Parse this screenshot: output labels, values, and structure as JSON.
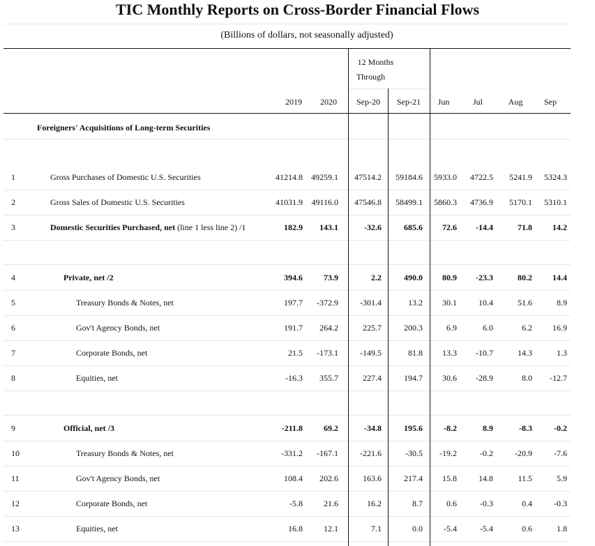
{
  "title": "TIC Monthly Reports on Cross-Border Financial Flows",
  "subtitle": "(Billions of dollars, not seasonally adjusted)",
  "group_header": {
    "line1": "12 Months",
    "line2": "Through"
  },
  "columns": [
    "2019",
    "2020",
    "Sep-20",
    "Sep-21",
    "Jun",
    "Jul",
    "Aug",
    "Sep"
  ],
  "section_title": "Foreigners' Acquisitions of Long-term Securities",
  "rows": [
    {
      "num": "1",
      "label": "Gross Purchases of Domestic U.S. Securities",
      "note": "",
      "indent": 1,
      "bold": false,
      "values": [
        "41214.8",
        "49259.1",
        "47514.2",
        "59184.6",
        "5933.0",
        "4722.5",
        "5241.9",
        "5324.3"
      ]
    },
    {
      "num": "2",
      "label": "Gross Sales of Domestic U.S. Securities",
      "note": "",
      "indent": 1,
      "bold": false,
      "values": [
        "41031.9",
        "49116.0",
        "47546.8",
        "58499.1",
        "5860.3",
        "4736.9",
        "5170.1",
        "5310.1"
      ]
    },
    {
      "num": "3",
      "label": "Domestic Securities Purchased, net",
      "note": "(line 1 less line 2) /1",
      "indent": 1,
      "bold": true,
      "values": [
        "182.9",
        "143.1",
        "-32.6",
        "685.6",
        "72.6",
        "-14.4",
        "71.8",
        "14.2"
      ]
    },
    {
      "num": "4",
      "label": "Private, net /2",
      "note": "",
      "indent": 2,
      "bold": true,
      "values": [
        "394.6",
        "73.9",
        "2.2",
        "490.0",
        "80.9",
        "-23.3",
        "80.2",
        "14.4"
      ]
    },
    {
      "num": "5",
      "label": "Treasury Bonds & Notes, net",
      "note": "",
      "indent": 3,
      "bold": false,
      "values": [
        "197.7",
        "-372.9",
        "-301.4",
        "13.2",
        "30.1",
        "10.4",
        "51.6",
        "8.9"
      ]
    },
    {
      "num": "6",
      "label": "Gov't Agency Bonds, net",
      "note": "",
      "indent": 3,
      "bold": false,
      "values": [
        "191.7",
        "264.2",
        "225.7",
        "200.3",
        "6.9",
        "6.0",
        "6.2",
        "16.9"
      ]
    },
    {
      "num": "7",
      "label": "Corporate Bonds, net",
      "note": "",
      "indent": 3,
      "bold": false,
      "values": [
        "21.5",
        "-173.1",
        "-149.5",
        "81.8",
        "13.3",
        "-10.7",
        "14.3",
        "1.3"
      ]
    },
    {
      "num": "8",
      "label": "Equities, net",
      "note": "",
      "indent": 3,
      "bold": false,
      "values": [
        "-16.3",
        "355.7",
        "227.4",
        "194.7",
        "30.6",
        "-28.9",
        "8.0",
        "-12.7"
      ]
    },
    {
      "num": "9",
      "label": "Official, net /3",
      "note": "",
      "indent": 2,
      "bold": true,
      "values": [
        "-211.8",
        "69.2",
        "-34.8",
        "195.6",
        "-8.2",
        "8.9",
        "-8.3",
        "-0.2"
      ]
    },
    {
      "num": "10",
      "label": "Treasury Bonds & Notes, net",
      "note": "",
      "indent": 3,
      "bold": false,
      "values": [
        "-331.2",
        "-167.1",
        "-221.6",
        "-30.5",
        "-19.2",
        "-0.2",
        "-20.9",
        "-7.6"
      ]
    },
    {
      "num": "11",
      "label": "Gov't Agency Bonds, net",
      "note": "",
      "indent": 3,
      "bold": false,
      "values": [
        "108.4",
        "202.6",
        "163.6",
        "217.4",
        "15.8",
        "14.8",
        "11.5",
        "5.9"
      ]
    },
    {
      "num": "12",
      "label": "Corporate Bonds, net",
      "note": "",
      "indent": 3,
      "bold": false,
      "values": [
        "-5.8",
        "21.6",
        "16.2",
        "8.7",
        "0.6",
        "-0.3",
        "0.4",
        "-0.3"
      ]
    },
    {
      "num": "13",
      "label": "Equities, net",
      "note": "",
      "indent": 3,
      "bold": false,
      "values": [
        "16.8",
        "12.1",
        "7.1",
        "0.0",
        "-5.4",
        "-5.4",
        "0.6",
        "1.8"
      ]
    }
  ]
}
